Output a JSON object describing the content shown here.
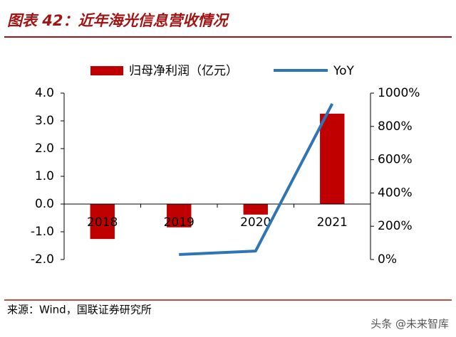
{
  "chart_data": {
    "type": "bar-line",
    "title": "图表 42：近年海光信息营收情况",
    "categories": [
      "2018",
      "2019",
      "2020",
      "2021"
    ],
    "series": [
      {
        "name": "归母净利润（亿元）",
        "type": "bar",
        "color": "#c00000",
        "values": [
          -1.26,
          -0.84,
          -0.38,
          3.26
        ]
      },
      {
        "name": "YoY",
        "type": "line",
        "axis": "y2",
        "color": "#2e75b6",
        "values": [
          null,
          30,
          51,
          936
        ]
      }
    ],
    "ylim": [
      -2,
      4
    ],
    "yticks": [
      {
        "value": -2,
        "label": "-2.0"
      },
      {
        "value": -1,
        "label": "-1.0"
      },
      {
        "value": 0,
        "label": "0.0"
      },
      {
        "value": 1,
        "label": "1.0"
      },
      {
        "value": 2,
        "label": "2.0"
      },
      {
        "value": 3,
        "label": "3.0"
      },
      {
        "value": 4,
        "label": "4.0"
      }
    ],
    "y2lim": [
      0,
      1000
    ],
    "y2ticks": [
      {
        "value": 0,
        "label": "0%"
      },
      {
        "value": 200,
        "label": "200%"
      },
      {
        "value": 400,
        "label": "400%"
      },
      {
        "value": 600,
        "label": "600%"
      },
      {
        "value": 800,
        "label": "800%"
      },
      {
        "value": 1000,
        "label": "1000%"
      }
    ],
    "legend": "top",
    "source": "来源：Wind，国联证券研究所",
    "watermark": "头条 @未来智库"
  }
}
